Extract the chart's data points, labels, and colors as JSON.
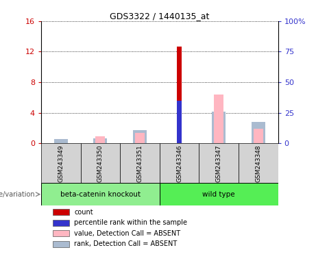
{
  "title": "GDS3322 / 1440135_at",
  "samples": [
    "GSM243349",
    "GSM243350",
    "GSM243351",
    "GSM243346",
    "GSM243347",
    "GSM243348"
  ],
  "groups": [
    "beta-catenin knockout",
    "beta-catenin knockout",
    "beta-catenin knockout",
    "wild type",
    "wild type",
    "wild type"
  ],
  "group_labels": [
    "beta-catenin knockout",
    "wild type"
  ],
  "ylim_left": [
    0,
    16
  ],
  "ylim_right": [
    0,
    100
  ],
  "yticks_left": [
    0,
    4,
    8,
    12,
    16
  ],
  "yticks_right": [
    0,
    25,
    50,
    75,
    100
  ],
  "yticklabels_right": [
    "0",
    "25",
    "50",
    "75",
    "100%"
  ],
  "red_bars": [
    0,
    0,
    0,
    12.7,
    0,
    0
  ],
  "blue_bars": [
    0,
    0,
    0,
    5.6,
    0,
    0
  ],
  "pink_bars": [
    0,
    0.9,
    1.4,
    0,
    6.4,
    1.9
  ],
  "lavender_bars": [
    0.55,
    0.65,
    1.75,
    0,
    4.1,
    2.75
  ],
  "color_red": "#CC0000",
  "color_blue": "#3333CC",
  "color_pink": "#FFB6C1",
  "color_lavender": "#AABBD0",
  "group_colors": {
    "beta-catenin knockout": "#90EE90",
    "wild type": "#55EE55"
  },
  "legend_items": [
    {
      "color": "#CC0000",
      "label": "count"
    },
    {
      "color": "#3333CC",
      "label": "percentile rank within the sample"
    },
    {
      "color": "#FFB6C1",
      "label": "value, Detection Call = ABSENT"
    },
    {
      "color": "#AABBD0",
      "label": "rank, Detection Call = ABSENT"
    }
  ],
  "left_axis_color": "#CC0000",
  "right_axis_color": "#3333CC",
  "genotype_label": "genotype/variation"
}
